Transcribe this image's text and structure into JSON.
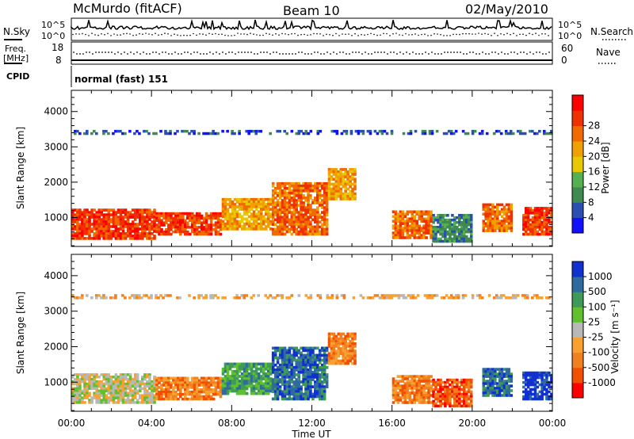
{
  "header": {
    "station": "McMurdo (fitACF)",
    "beam": "Beam 10",
    "date": "02/May/2010"
  },
  "top_panels": {
    "nsky_label": "N.Sky",
    "nsky_ticks": [
      "10^5",
      "10^0"
    ],
    "nsearch_label": "N.Search",
    "nsearch_ticks": [
      "10^5",
      "10^0"
    ],
    "freq_label_1": "Freq.",
    "freq_label_2": "[MHz]",
    "freq_ticks": [
      "18",
      "8"
    ],
    "nave_label": "Nave",
    "nave_ticks": [
      "60",
      "0"
    ],
    "cpid_label": "CPID",
    "cpid_value": "normal (fast) 151"
  },
  "colors": {
    "power": [
      "#1010ff",
      "#2a4fb0",
      "#3f8a50",
      "#55b050",
      "#e8c800",
      "#f0a000",
      "#f06a00",
      "#ef3000",
      "#ff0000"
    ],
    "velocity": [
      "#ff0000",
      "#f05000",
      "#f08020",
      "#f8a030",
      "#b8b8b8",
      "#60c030",
      "#3f9a58",
      "#2f6aa0",
      "#1030d0"
    ]
  },
  "chart_data": [
    {
      "type": "heatmap",
      "quantity": "Power",
      "ylabel": "Slant Range [km]",
      "xlabel": "",
      "ylim": [
        180,
        4600
      ],
      "y_ticks": [
        1000,
        2000,
        3000,
        4000
      ],
      "x_ticks": [
        "00:00",
        "04:00",
        "08:00",
        "12:00",
        "16:00",
        "20:00",
        "00:00"
      ],
      "colorbar": {
        "label": "Power [dB]",
        "ticks": [
          "4",
          "8",
          "12",
          "16",
          "20",
          "24",
          "28"
        ]
      },
      "regions": [
        {
          "t": [
            0,
            4.2
          ],
          "r": [
            380,
            1250
          ],
          "level": 7
        },
        {
          "t": [
            4.2,
            7.5
          ],
          "r": [
            500,
            1150
          ],
          "level": 7
        },
        {
          "t": [
            7.5,
            10
          ],
          "r": [
            650,
            1550
          ],
          "level": 5
        },
        {
          "t": [
            10,
            12.8
          ],
          "r": [
            500,
            2000
          ],
          "level": 6
        },
        {
          "t": [
            12.8,
            14.2
          ],
          "r": [
            1500,
            2400
          ],
          "level": 5
        },
        {
          "t": [
            16,
            18
          ],
          "r": [
            400,
            1200
          ],
          "level": 6
        },
        {
          "t": [
            18,
            20
          ],
          "r": [
            300,
            1100
          ],
          "level": 2
        },
        {
          "t": [
            20.5,
            22
          ],
          "r": [
            600,
            1400
          ],
          "level": 6
        },
        {
          "t": [
            22.5,
            24
          ],
          "r": [
            500,
            1300
          ],
          "level": 7
        },
        {
          "t": [
            0,
            24
          ],
          "r": [
            3350,
            3480
          ],
          "level": 1
        }
      ]
    },
    {
      "type": "heatmap",
      "quantity": "Velocity",
      "ylabel": "Slant Range [km]",
      "xlabel": "Time UT",
      "ylim": [
        180,
        4600
      ],
      "y_ticks": [
        1000,
        2000,
        3000,
        4000
      ],
      "x_ticks": [
        "00:00",
        "04:00",
        "08:00",
        "12:00",
        "16:00",
        "20:00",
        "00:00"
      ],
      "colorbar": {
        "label": "Velocity [m s⁻¹]",
        "ticks": [
          "1000",
          "500",
          "100",
          "25",
          "-25",
          "-100",
          "-500",
          "-1000"
        ]
      },
      "regions": [
        {
          "t": [
            0,
            4.2
          ],
          "r": [
            400,
            1250
          ],
          "level": 4
        },
        {
          "t": [
            4.2,
            7.5
          ],
          "r": [
            500,
            1150
          ],
          "level": 2
        },
        {
          "t": [
            7.5,
            10
          ],
          "r": [
            650,
            1550
          ],
          "level": 6
        },
        {
          "t": [
            10,
            12.8
          ],
          "r": [
            500,
            2000
          ],
          "level": 7
        },
        {
          "t": [
            12.8,
            14.2
          ],
          "r": [
            1500,
            2400
          ],
          "level": 2
        },
        {
          "t": [
            16,
            18
          ],
          "r": [
            400,
            1200
          ],
          "level": 2
        },
        {
          "t": [
            18,
            20
          ],
          "r": [
            300,
            1100
          ],
          "level": 1
        },
        {
          "t": [
            20.5,
            22
          ],
          "r": [
            600,
            1400
          ],
          "level": 7
        },
        {
          "t": [
            22.5,
            24
          ],
          "r": [
            500,
            1300
          ],
          "level": 8
        },
        {
          "t": [
            0,
            24
          ],
          "r": [
            3350,
            3480
          ],
          "level": 3
        }
      ]
    }
  ]
}
